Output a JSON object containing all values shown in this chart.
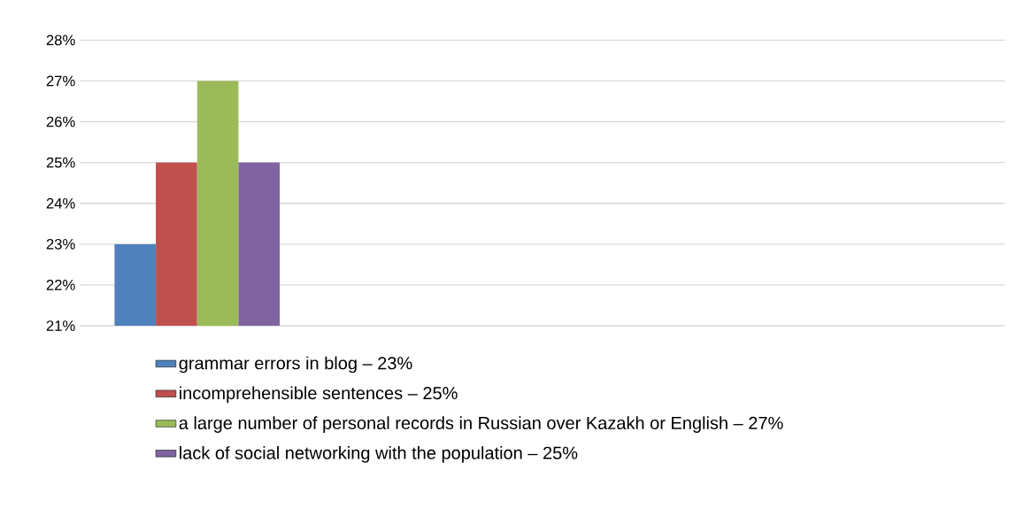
{
  "chart_data": {
    "type": "bar",
    "categories": [
      null
    ],
    "series": [
      {
        "name": "grammar errors in blog – 23%",
        "color": "#4f81bd",
        "values": [
          23
        ]
      },
      {
        "name": "incomprehensible sentences – 25%",
        "color": "#c0504d",
        "values": [
          25
        ]
      },
      {
        "name": "a large number of personal records in Russian over Kazakh or English – 27%",
        "color": "#9bbb59",
        "values": [
          27
        ]
      },
      {
        "name": "lack of social networking with the population – 25%",
        "color": "#8064a2",
        "values": [
          25
        ]
      }
    ],
    "ylim": [
      21,
      28
    ],
    "yticks": [
      {
        "value": 21,
        "label": "21%"
      },
      {
        "value": 22,
        "label": "22%"
      },
      {
        "value": 23,
        "label": "23%"
      },
      {
        "value": 24,
        "label": "24%"
      },
      {
        "value": 25,
        "label": "25%"
      },
      {
        "value": 26,
        "label": "26%"
      },
      {
        "value": 27,
        "label": "27%"
      },
      {
        "value": 28,
        "label": "28%"
      }
    ],
    "grid": "y",
    "legend": "bottom"
  }
}
